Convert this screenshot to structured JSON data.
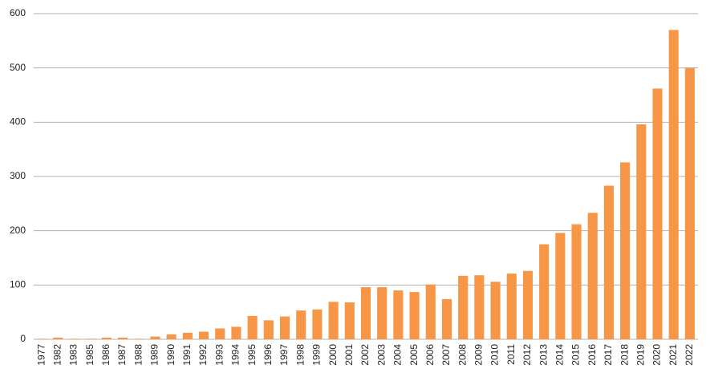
{
  "chart_data": {
    "type": "bar",
    "categories": [
      "1977",
      "1982",
      "1983",
      "1985",
      "1986",
      "1987",
      "1988",
      "1989",
      "1990",
      "1991",
      "1992",
      "1993",
      "1994",
      "1995",
      "1996",
      "1997",
      "1998",
      "1999",
      "2000",
      "2001",
      "2002",
      "2003",
      "2004",
      "2005",
      "2006",
      "2007",
      "2008",
      "2009",
      "2010",
      "2011",
      "2012",
      "2013",
      "2014",
      "2015",
      "2016",
      "2017",
      "2018",
      "2019",
      "2020",
      "2021",
      "2022"
    ],
    "values": [
      1,
      3,
      1,
      1,
      3,
      3,
      1,
      5,
      9,
      12,
      14,
      20,
      23,
      43,
      35,
      42,
      53,
      55,
      69,
      68,
      96,
      96,
      90,
      87,
      101,
      74,
      117,
      118,
      106,
      121,
      126,
      175,
      196,
      212,
      233,
      283,
      326,
      396,
      462,
      570,
      500
    ],
    "color": "#f79646",
    "ylim": [
      0,
      600
    ],
    "yticks": [
      0,
      100,
      200,
      300,
      400,
      500,
      600
    ],
    "grid": true
  }
}
